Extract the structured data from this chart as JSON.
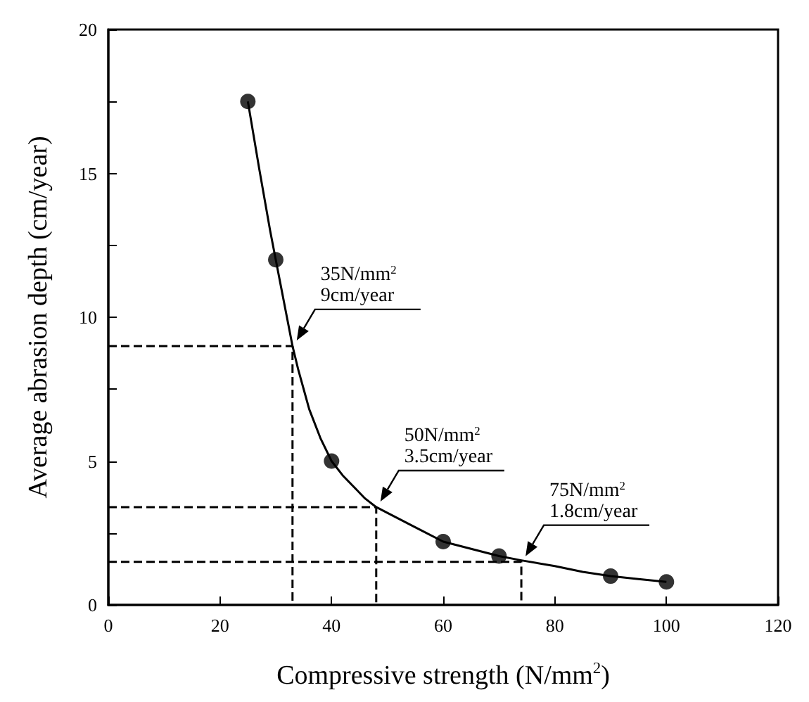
{
  "chart_data": {
    "type": "scatter",
    "xlabel": "Compressive strength (N/mm$^{2}$)",
    "ylabel": "Average abrasion depth (cm/year)",
    "xlim": [
      0,
      120
    ],
    "xticks": [
      0,
      20,
      40,
      60,
      80,
      100,
      120
    ],
    "ylim": [
      0,
      20
    ],
    "yticks": [
      0,
      {
        "value": 2.5,
        "label": null
      },
      5,
      {
        "value": 7.5,
        "label": null
      },
      10,
      {
        "value": 12.5,
        "label": null
      },
      15,
      {
        "value": 17.5,
        "label": null
      },
      20
    ],
    "grid": false,
    "marker": "circle",
    "color": "#000000",
    "series": [
      {
        "x": [
          25,
          30,
          40,
          60,
          70,
          90,
          100
        ],
        "values": [
          17.5,
          12,
          5,
          2.2,
          1.7,
          1.0,
          0.8
        ]
      },
      {
        "type": "line",
        "color": "#000000",
        "marker": "none",
        "line_style": "solid",
        "x": [
          25,
          27,
          29,
          30,
          31,
          32,
          33,
          34,
          35,
          36,
          38,
          40,
          42,
          44,
          46,
          48,
          50,
          55,
          60,
          65,
          70,
          74,
          80,
          85,
          90,
          95,
          100
        ],
        "values": [
          17.5,
          15.2,
          13.0,
          12,
          11.0,
          10.0,
          9.0,
          8.2,
          7.5,
          6.8,
          5.8,
          5.0,
          4.5,
          4.1,
          3.7,
          3.4,
          3.2,
          2.7,
          2.2,
          1.95,
          1.7,
          1.55,
          1.35,
          1.15,
          1.0,
          0.9,
          0.8
        ]
      },
      {
        "type": "line",
        "color": "#000000",
        "marker": "none",
        "line_style": "dashed",
        "x": [
          0,
          33,
          33
        ],
        "values": [
          9,
          9,
          0
        ]
      },
      {
        "type": "line",
        "color": "#000000",
        "marker": "none",
        "line_style": "dashed",
        "x": [
          0,
          48,
          48
        ],
        "values": [
          3.4,
          3.4,
          0
        ]
      },
      {
        "type": "line",
        "color": "#000000",
        "marker": "none",
        "line_style": "dashed",
        "x": [
          0,
          74,
          74
        ],
        "values": [
          1.5,
          1.5,
          0
        ]
      }
    ],
    "annotations": [
      {
        "text": "35N/mm$^{2}$\n9cm/year",
        "x": 33,
        "y": 9
      },
      {
        "text": "50N/mm$^{2}$\n3.5cm/year",
        "x": 48,
        "y": 3.4
      },
      {
        "text": "75N/mm$^{2}$\n1.8cm/year",
        "x": 74,
        "y": 1.5
      }
    ]
  }
}
